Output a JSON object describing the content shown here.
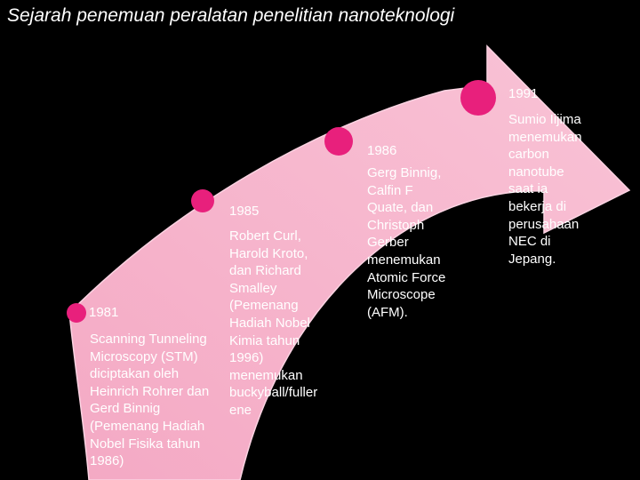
{
  "title": "Sejarah penemuan peralatan penelitian nanoteknologi",
  "colors": {
    "background": "#000000",
    "arrow": "#f7b7cd",
    "dot": "#e8207c"
  },
  "milestones": [
    {
      "year": "1981",
      "text": "Scanning Tunneling\nMicroscopy (STM)\ndiciptakan oleh\nHeinrich Rohrer dan\nGerd Binnig\n(Pemenang Hadiah\nNobel Fisika tahun\n1986)"
    },
    {
      "year": "1985",
      "text": "Robert Curl,\nHarold Kroto,\ndan Richard\nSmalley\n(Pemenang\nHadiah Nobel\nKimia tahun\n1996)\nmenemukan\nbuckyball/fuller\nene"
    },
    {
      "year": "1986",
      "text": "Gerg Binnig,\nCalfin F\nQuate, dan\nChristoph\nGerber\nmenemukan\nAtomic Force\nMicroscope\n(AFM)."
    },
    {
      "year": "1991",
      "text": "Sumio Iijima\nmenemukan\ncarbon\nnanotube\nsaat ia\nbekerja di\nperusahaan\nNEC di\nJepang."
    }
  ]
}
